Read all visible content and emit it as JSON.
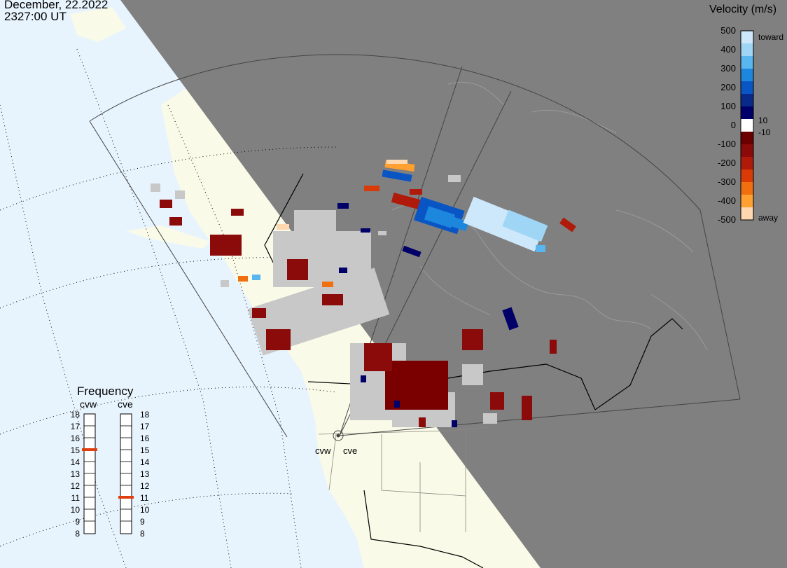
{
  "header": {
    "date": "December, 22.2022",
    "time": "2327:00 UT"
  },
  "velocity_scale": {
    "title": "Velocity (m/s)",
    "ticks": [
      "500",
      "400",
      "300",
      "200",
      "100",
      "0",
      "-100",
      "-200",
      "-300",
      "-400",
      "-500"
    ],
    "toward_label": "toward",
    "away_label": "away",
    "near_zero_labels": [
      "10",
      "-10"
    ],
    "colors": [
      "#cde8fa",
      "#9fd5f5",
      "#5ab6ee",
      "#1d86dd",
      "#0a55c4",
      "#0a2a8a",
      "#000068",
      "#ffffff",
      "#6b0000",
      "#8b0a0a",
      "#b01a0a",
      "#d83a08",
      "#f07010",
      "#ffa030",
      "#ffd8b0"
    ],
    "ground_scatter_color": "#c8c8c8"
  },
  "frequency": {
    "title": "Frequency",
    "radars": [
      "cvw",
      "cve"
    ],
    "ticks": [
      "18",
      "17",
      "16",
      "15",
      "14",
      "13",
      "12",
      "11",
      "10",
      "9",
      "8"
    ],
    "cvw_value": 15,
    "cve_value": 11,
    "marker_color": "#e04010"
  },
  "map": {
    "station_labels": [
      "cvw",
      "cve"
    ],
    "ocean_color": "#e8f4fd",
    "land_color": "#fafae8",
    "night_color": "#808080"
  }
}
